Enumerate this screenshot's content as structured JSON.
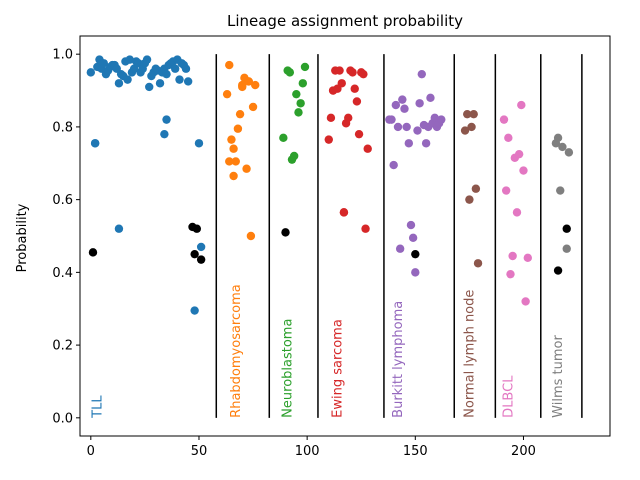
{
  "chart_data": {
    "type": "scatter",
    "title": "Lineage assignment probability",
    "xlabel": "",
    "ylabel": "Probability",
    "xlim": [
      -5,
      240
    ],
    "ylim": [
      -0.05,
      1.05
    ],
    "xticks": [
      0,
      50,
      100,
      150,
      200
    ],
    "yticks": [
      0.0,
      0.2,
      0.4,
      0.6,
      0.8,
      1.0
    ],
    "grid": false,
    "separators": [
      58,
      82.5,
      105,
      135.5,
      168,
      187,
      208,
      227
    ],
    "groups": [
      {
        "name": "TLL",
        "color": "#1f77b4",
        "label_x": 3,
        "x": [
          0,
          2,
          3,
          4,
          5,
          6,
          7,
          8,
          9,
          10,
          11,
          12,
          13,
          14,
          15,
          16,
          17,
          18,
          19,
          20,
          21,
          22,
          23,
          24,
          25,
          26,
          27,
          28,
          29,
          30,
          31,
          32,
          33,
          34,
          35,
          36,
          37,
          38,
          39,
          40,
          41,
          42,
          43,
          44,
          45,
          2,
          13,
          34,
          35,
          48,
          50,
          51
        ],
        "y": [
          0.95,
          0.755,
          0.965,
          0.985,
          0.96,
          0.975,
          0.945,
          0.955,
          0.965,
          0.97,
          0.97,
          0.96,
          0.92,
          0.945,
          0.94,
          0.98,
          0.93,
          0.985,
          0.95,
          0.96,
          0.98,
          0.975,
          0.95,
          0.96,
          0.975,
          0.985,
          0.91,
          0.94,
          0.95,
          0.96,
          0.955,
          0.92,
          0.95,
          0.96,
          0.945,
          0.97,
          0.975,
          0.98,
          0.96,
          0.985,
          0.93,
          0.975,
          0.97,
          0.96,
          0.925,
          0.755,
          0.52,
          0.78,
          0.82,
          0.295,
          0.755,
          0.47
        ]
      },
      {
        "name": "Rhabdomyosarcoma",
        "color": "#ff7f0e",
        "label_x": 67,
        "x": [
          63,
          64,
          65,
          66,
          67,
          68,
          69,
          70,
          71,
          72,
          73,
          74,
          75,
          76,
          64,
          66,
          70,
          73
        ],
        "y": [
          0.89,
          0.97,
          0.765,
          0.665,
          0.705,
          0.795,
          0.835,
          0.91,
          0.935,
          0.685,
          0.925,
          0.5,
          0.855,
          0.915,
          0.705,
          0.74,
          0.915,
          0.925
        ],
        "outliers_x": [],
        "outliers_y": []
      },
      {
        "name": "Neuroblastoma",
        "color": "#2ca02c",
        "label_x": 91,
        "x": [
          89,
          91,
          92,
          93,
          94,
          95,
          96,
          97,
          98,
          99
        ],
        "y": [
          0.77,
          0.955,
          0.95,
          0.71,
          0.72,
          0.89,
          0.84,
          0.865,
          0.92,
          0.965
        ]
      },
      {
        "name": "Ewing sarcoma",
        "color": "#d62728",
        "label_x": 114,
        "x": [
          110,
          111,
          112,
          113,
          114,
          115,
          116,
          117,
          118,
          119,
          120,
          121,
          122,
          123,
          124,
          125,
          126,
          127,
          128,
          112,
          117
        ],
        "y": [
          0.765,
          0.825,
          0.9,
          0.955,
          0.905,
          0.955,
          0.92,
          0.565,
          0.81,
          0.825,
          0.955,
          0.95,
          0.905,
          0.87,
          0.78,
          0.95,
          0.945,
          0.52,
          0.74,
          0.9,
          0.565
        ]
      },
      {
        "name": "Burkitt lymphoma",
        "color": "#9467bd",
        "label_x": 142,
        "x": [
          138,
          139,
          140,
          141,
          142,
          143,
          144,
          145,
          146,
          147,
          148,
          149,
          150,
          151,
          152,
          153,
          154,
          155,
          156,
          157,
          158,
          159,
          160,
          161,
          162
        ],
        "y": [
          0.82,
          0.82,
          0.695,
          0.86,
          0.8,
          0.465,
          0.875,
          0.85,
          0.8,
          0.755,
          0.53,
          0.495,
          0.4,
          0.79,
          0.865,
          0.945,
          0.805,
          0.755,
          0.8,
          0.88,
          0.81,
          0.825,
          0.8,
          0.81,
          0.82
        ]
      },
      {
        "name": "Normal lymph node",
        "color": "#8c564b",
        "label_x": 175,
        "x": [
          173,
          174,
          175,
          176,
          177,
          178,
          179
        ],
        "y": [
          0.79,
          0.835,
          0.6,
          0.8,
          0.835,
          0.63,
          0.425
        ]
      },
      {
        "name": "DLBCL",
        "color": "#e377c2",
        "label_x": 193,
        "x": [
          191,
          192,
          193,
          194,
          195,
          196,
          197,
          198,
          199,
          200,
          201,
          202
        ],
        "y": [
          0.82,
          0.625,
          0.77,
          0.395,
          0.445,
          0.715,
          0.565,
          0.725,
          0.86,
          0.68,
          0.32,
          0.44
        ]
      },
      {
        "name": "Wilms tumor",
        "color": "#7f7f7f",
        "label_x": 216,
        "x": [
          215,
          216,
          217,
          218,
          220,
          221
        ],
        "y": [
          0.755,
          0.77,
          0.625,
          0.745,
          0.465,
          0.73
        ]
      }
    ],
    "black_points": {
      "color": "#000000",
      "x": [
        1,
        47,
        48,
        49,
        51,
        90,
        150,
        216,
        220
      ],
      "y": [
        0.455,
        0.525,
        0.45,
        0.52,
        0.435,
        0.51,
        0.45,
        0.405,
        0.52
      ]
    }
  }
}
